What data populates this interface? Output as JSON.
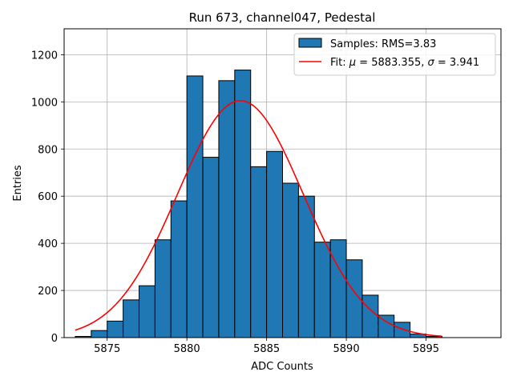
{
  "chart_data": {
    "type": "bar",
    "title": "Run 673, channel047, Pedestal",
    "xlabel": "ADC Counts",
    "ylabel": "Entries",
    "xlim": [
      5872.3,
      5899.7
    ],
    "ylim": [
      0,
      1310
    ],
    "grid": true,
    "legend_position": "top-right",
    "xticks": [
      5875,
      5880,
      5885,
      5890,
      5895
    ],
    "yticks": [
      0,
      200,
      400,
      600,
      800,
      1000,
      1200
    ],
    "bin_width": 1,
    "histogram": {
      "name": "Samples: RMS=3.83",
      "color": "#1f77b4",
      "bin_centers": [
        5873.5,
        5874.5,
        5875.5,
        5876.5,
        5877.5,
        5878.5,
        5879.5,
        5880.5,
        5881.5,
        5882.5,
        5883.5,
        5884.5,
        5885.5,
        5886.5,
        5887.5,
        5888.5,
        5889.5,
        5890.5,
        5891.5,
        5892.5,
        5893.5,
        5894.5,
        5895.5
      ],
      "counts": [
        5,
        30,
        70,
        160,
        220,
        415,
        580,
        1110,
        765,
        1090,
        1135,
        725,
        790,
        655,
        600,
        405,
        415,
        330,
        180,
        95,
        65,
        15,
        5
      ]
    },
    "fit": {
      "name_prefix": "Fit: ",
      "mu_symbol": "μ",
      "mu_text": " = 5883.355, ",
      "sigma_symbol": "σ",
      "sigma_text": " = 3.941",
      "color": "#ff0000",
      "mu": 5883.355,
      "sigma": 3.941,
      "amplitude": 1005,
      "x_range": [
        5873,
        5896
      ]
    }
  }
}
